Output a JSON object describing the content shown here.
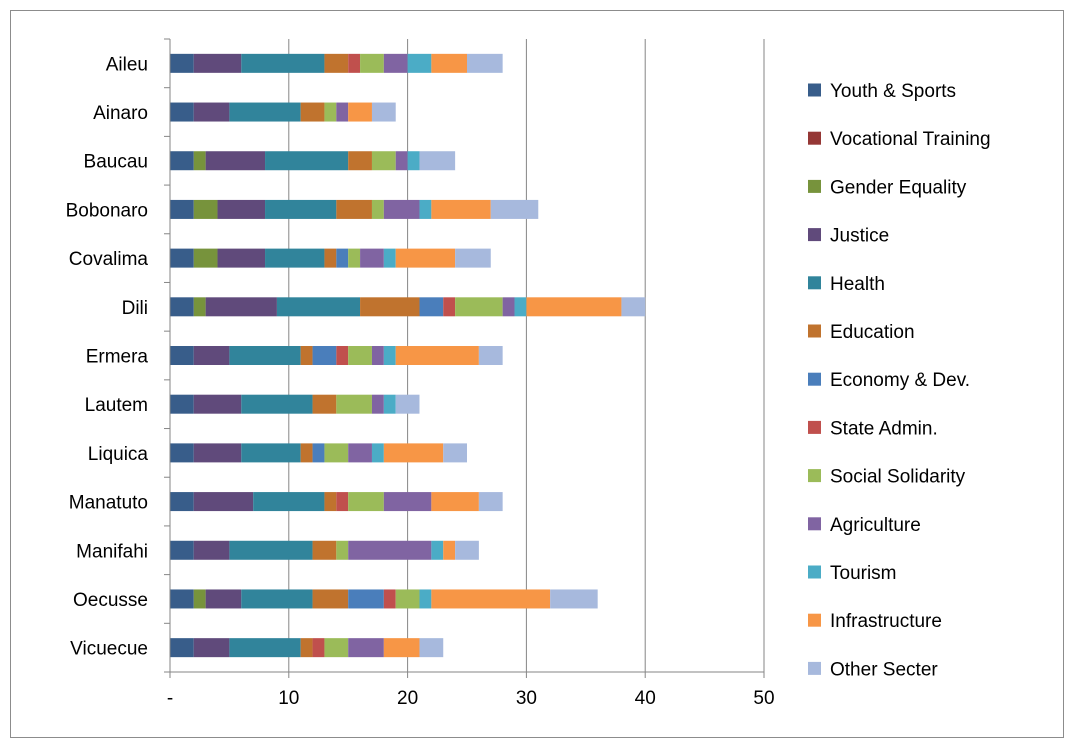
{
  "chart_data": {
    "type": "bar",
    "orientation": "horizontal",
    "stacked": true,
    "title": "",
    "xlabel": "",
    "ylabel": "",
    "xlim": [
      0,
      50
    ],
    "x_ticks": [
      0,
      10,
      20,
      30,
      40,
      50
    ],
    "x_tick_labels": [
      "-",
      "10",
      "20",
      "30",
      "40",
      "50"
    ],
    "grid": "vertical",
    "legend_position": "right",
    "categories": [
      "Aileu",
      "Ainaro",
      "Baucau",
      "Bobonaro",
      "Covalima",
      "Dili",
      "Ermera",
      "Lautem",
      "Liquica",
      "Manatuto",
      "Manifahi",
      "Oecusse",
      "Vicuecue"
    ],
    "series": [
      {
        "name": "Youth & Sports",
        "color": "#385d8a",
        "values": [
          2,
          2,
          2,
          2,
          2,
          2,
          2,
          2,
          2,
          2,
          2,
          2,
          2
        ]
      },
      {
        "name": "Vocational Training",
        "color": "#953735",
        "values": [
          0,
          0,
          0,
          0,
          0,
          0,
          0,
          0,
          0,
          0,
          0,
          0,
          0
        ]
      },
      {
        "name": "Gender Equality",
        "color": "#77933c",
        "values": [
          0,
          0,
          1,
          2,
          2,
          1,
          0,
          0,
          0,
          0,
          0,
          1,
          0
        ]
      },
      {
        "name": "Justice",
        "color": "#604a7b",
        "values": [
          4,
          3,
          5,
          4,
          4,
          6,
          3,
          4,
          4,
          5,
          3,
          3,
          3
        ]
      },
      {
        "name": "Health",
        "color": "#31849b",
        "values": [
          7,
          6,
          7,
          6,
          5,
          7,
          6,
          6,
          5,
          6,
          7,
          6,
          6
        ]
      },
      {
        "name": "Education",
        "color": "#c0732e",
        "values": [
          2,
          2,
          2,
          3,
          1,
          5,
          1,
          2,
          1,
          1,
          2,
          3,
          1
        ]
      },
      {
        "name": "Economy & Dev.",
        "color": "#4a7ebb",
        "values": [
          0,
          0,
          0,
          0,
          1,
          2,
          2,
          0,
          1,
          0,
          0,
          3,
          0
        ]
      },
      {
        "name": "State Admin.",
        "color": "#c0504d",
        "values": [
          1,
          0,
          0,
          0,
          0,
          1,
          1,
          0,
          0,
          1,
          0,
          1,
          1
        ]
      },
      {
        "name": "Social Solidarity",
        "color": "#9bbb59",
        "values": [
          2,
          1,
          2,
          1,
          1,
          4,
          2,
          3,
          2,
          3,
          1,
          2,
          2
        ]
      },
      {
        "name": "Agriculture",
        "color": "#8064a2",
        "values": [
          2,
          1,
          1,
          3,
          2,
          1,
          1,
          1,
          2,
          4,
          7,
          0,
          3
        ]
      },
      {
        "name": "Tourism",
        "color": "#4bacc6",
        "values": [
          2,
          0,
          1,
          1,
          1,
          1,
          1,
          1,
          1,
          0,
          1,
          1,
          0
        ]
      },
      {
        "name": "Infrastructure",
        "color": "#f79646",
        "values": [
          3,
          2,
          0,
          5,
          5,
          8,
          7,
          0,
          5,
          4,
          1,
          10,
          3
        ]
      },
      {
        "name": "Other Secter",
        "color": "#a7b9dd",
        "values": [
          3,
          2,
          3,
          4,
          3,
          2,
          2,
          2,
          2,
          2,
          2,
          4,
          2
        ]
      }
    ]
  }
}
